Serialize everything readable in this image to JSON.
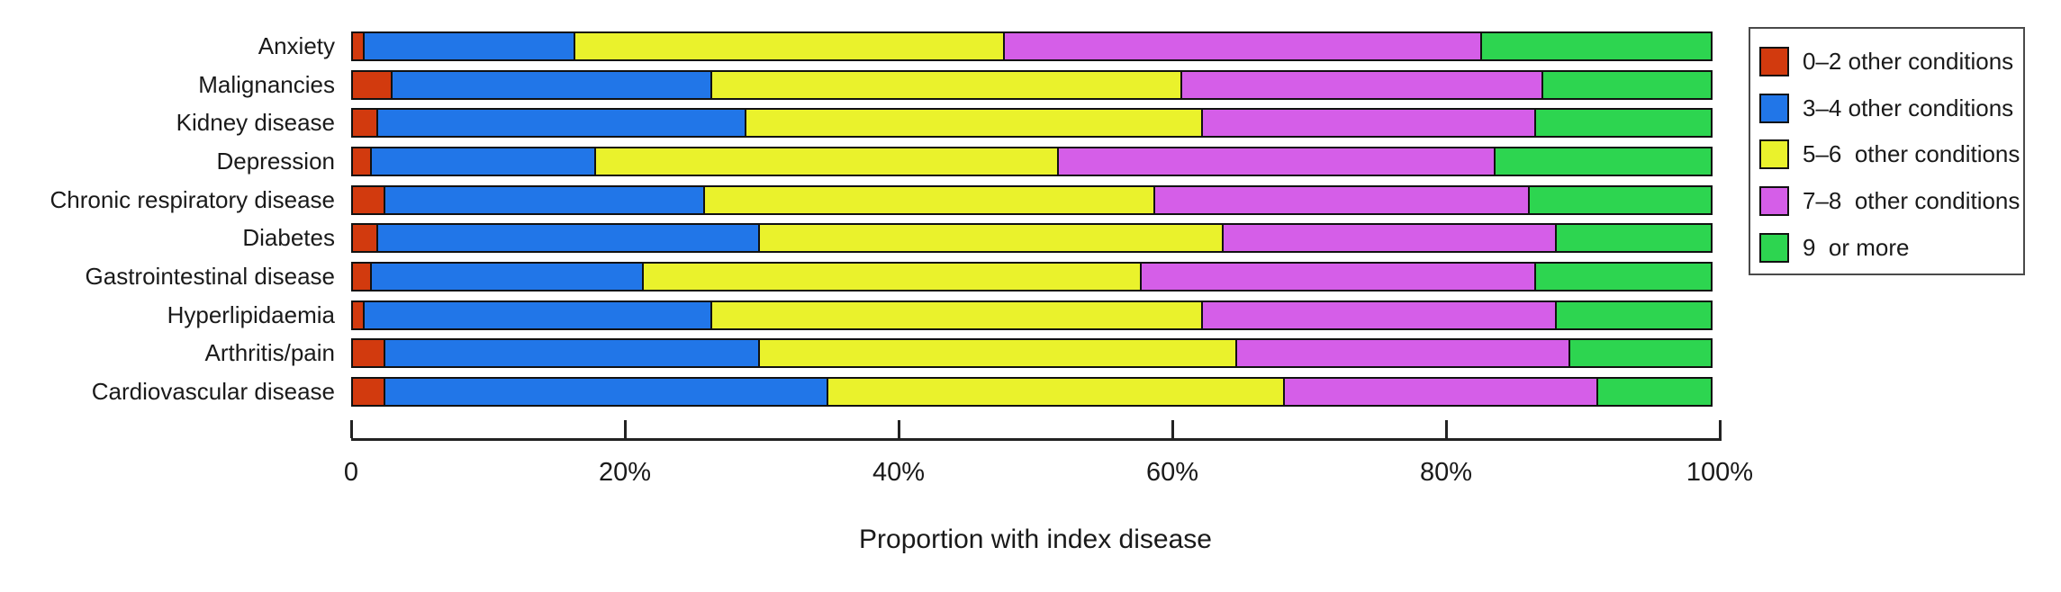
{
  "chart_data": {
    "type": "stacked_bar_horizontal",
    "title": "",
    "xlabel": "Proportion with index disease",
    "xlim": [
      0,
      100
    ],
    "grid": false,
    "legend_position": "top-right-outside",
    "x_ticks": [
      {
        "value": 0,
        "label": "0"
      },
      {
        "value": 20,
        "label": "20%"
      },
      {
        "value": 40,
        "label": "40%"
      },
      {
        "value": 60,
        "label": "60%"
      },
      {
        "value": 80,
        "label": "80%"
      },
      {
        "value": 100,
        "label": "100%"
      }
    ],
    "categories": [
      "Anxiety",
      "Malignancies",
      "Kidney disease",
      "Depression",
      "Chronic respiratory disease",
      "Diabetes",
      "Gastrointestinal disease",
      "Hyperlipidaemia",
      "Arthritis/pain",
      "Cardiovascular disease"
    ],
    "series": [
      {
        "name": "0–2 other conditions",
        "color": "#d23a0e",
        "values": [
          1,
          3,
          2,
          1.5,
          2.5,
          2,
          1.5,
          1,
          2.5,
          2.5
        ]
      },
      {
        "name": "3–4 other conditions",
        "color": "#2176e8",
        "values": [
          15.5,
          23.5,
          27,
          16.5,
          23.5,
          28,
          20,
          25.5,
          27.5,
          32.5
        ]
      },
      {
        "name": "5–6  other conditions",
        "color": "#eaf22c",
        "values": [
          31.5,
          34.5,
          33.5,
          34,
          33,
          34,
          36.5,
          36,
          35,
          33.5
        ]
      },
      {
        "name": "7–8  other conditions",
        "color": "#d55ee8",
        "values": [
          35,
          26.5,
          24.5,
          32,
          27.5,
          24.5,
          29,
          26,
          24.5,
          23
        ]
      },
      {
        "name": "9  or more",
        "color": "#2dd550",
        "values": [
          17,
          12.5,
          13,
          16,
          13.5,
          11.5,
          13,
          11.5,
          10.5,
          8.5
        ]
      }
    ]
  }
}
